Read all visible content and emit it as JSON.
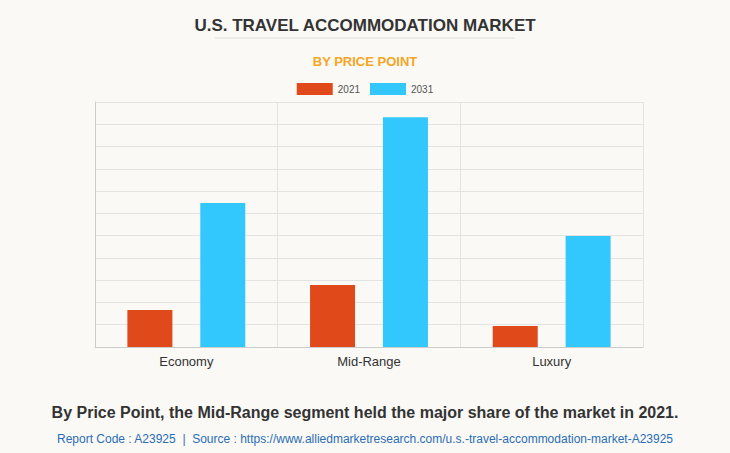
{
  "chart_data": {
    "type": "bar",
    "title": "U.S. TRAVEL ACCOMMODATION MARKET",
    "subtitle": "BY PRICE POINT",
    "categories": [
      "Economy",
      "Mid-Range",
      "Luxury"
    ],
    "series": [
      {
        "name": "2021",
        "color": "#e04a1a",
        "values": [
          1.66,
          2.78,
          0.94
        ]
      },
      {
        "name": "2031",
        "color": "#33c8fd",
        "values": [
          6.46,
          10.31,
          4.98
        ]
      }
    ],
    "ylim": [
      0,
      11
    ],
    "yticks": [
      0,
      1,
      2,
      3,
      4,
      5,
      6,
      7,
      8,
      9,
      10,
      11
    ],
    "grid": true,
    "legend": "top",
    "tick_labels": "x",
    "caption": "By Price Point, the Mid-Range segment held the major share of the market in 2021.",
    "source": "Report Code : A23925  |  Source : https://www.alliedmarketresearch.com/u.s.-travel-accommodation-market-A23925"
  }
}
